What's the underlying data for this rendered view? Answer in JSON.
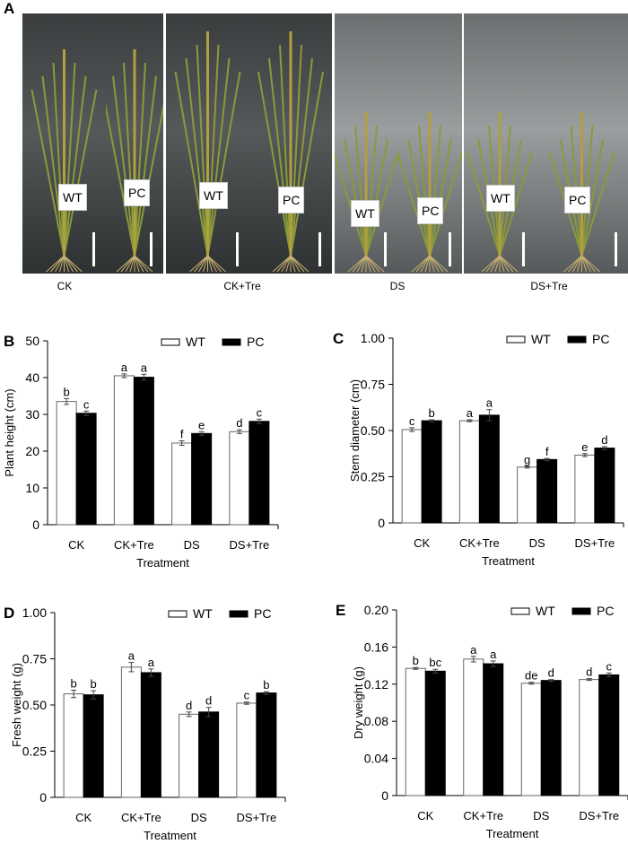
{
  "panel_a": {
    "letter": "A",
    "groups": [
      "CK",
      "CK+Tre",
      "DS",
      "DS+Tre"
    ],
    "photo_labels": [
      "WT",
      "PC",
      "WT",
      "PC",
      "WT",
      "PC",
      "WT",
      "PC"
    ]
  },
  "chart_data": [
    {
      "letter": "B",
      "type": "bar",
      "categories": [
        "CK",
        "CK+Tre",
        "DS",
        "DS+Tre"
      ],
      "xlabel": "Treatment",
      "ylabel": "Plant height (cm)",
      "ylim": [
        0,
        50
      ],
      "yticks": [
        "0",
        "10",
        "20",
        "30",
        "40",
        "50"
      ],
      "legend": "top-right",
      "series": [
        {
          "name": "WT",
          "color": "#ffffff",
          "values": [
            33.5,
            40.5,
            22.2,
            25.3
          ],
          "errors": [
            0.8,
            0.5,
            0.6,
            0.5
          ],
          "letters": [
            "b",
            "a",
            "f",
            "d"
          ]
        },
        {
          "name": "PC",
          "color": "#000000",
          "values": [
            30.3,
            40.1,
            24.8,
            28.1
          ],
          "errors": [
            0.6,
            0.8,
            0.5,
            0.6
          ],
          "letters": [
            "c",
            "a",
            "e",
            "c"
          ]
        }
      ]
    },
    {
      "letter": "C",
      "type": "bar",
      "categories": [
        "CK",
        "CK+Tre",
        "DS",
        "DS+Tre"
      ],
      "xlabel": "Treatment",
      "ylabel": "Stem diameter (cm)",
      "ylim": [
        0,
        1
      ],
      "yticks": [
        "0",
        "0.25",
        "0.50",
        "0.75",
        "1.00"
      ],
      "legend": "top-right",
      "series": [
        {
          "name": "WT",
          "color": "#ffffff",
          "values": [
            0.505,
            0.553,
            0.302,
            0.367
          ],
          "errors": [
            0.01,
            0.005,
            0.005,
            0.008
          ],
          "letters": [
            "c",
            "a",
            "g",
            "e"
          ]
        },
        {
          "name": "PC",
          "color": "#000000",
          "values": [
            0.553,
            0.583,
            0.343,
            0.405
          ],
          "errors": [
            0.005,
            0.03,
            0.006,
            0.008
          ],
          "letters": [
            "b",
            "a",
            "f",
            "d"
          ]
        }
      ]
    },
    {
      "letter": "D",
      "type": "bar",
      "categories": [
        "CK",
        "CK+Tre",
        "DS",
        "DS+Tre"
      ],
      "xlabel": "Treatment",
      "ylabel": "Fresh weight (g)",
      "ylim": [
        0,
        1
      ],
      "yticks": [
        "0",
        "0.25",
        "0.50",
        "0.75",
        "1.00"
      ],
      "legend": "top-right",
      "series": [
        {
          "name": "WT",
          "color": "#ffffff",
          "values": [
            0.56,
            0.705,
            0.45,
            0.51
          ],
          "errors": [
            0.02,
            0.025,
            0.012,
            0.006
          ],
          "letters": [
            "b",
            "a",
            "d",
            "c"
          ]
        },
        {
          "name": "PC",
          "color": "#000000",
          "values": [
            0.555,
            0.675,
            0.462,
            0.565
          ],
          "errors": [
            0.022,
            0.02,
            0.025,
            0.007
          ],
          "letters": [
            "b",
            "a",
            "d",
            "b"
          ]
        }
      ]
    },
    {
      "letter": "E",
      "type": "bar",
      "categories": [
        "CK",
        "CK+Tre",
        "DS",
        "DS+Tre"
      ],
      "xlabel": "Treatment",
      "ylabel": "Dry weight (g)",
      "ylim": [
        0,
        0.2
      ],
      "yticks": [
        "0",
        "0.04",
        "0.08",
        "0.12",
        "0.16",
        "0.20"
      ],
      "legend": "top-right",
      "series": [
        {
          "name": "WT",
          "color": "#ffffff",
          "values": [
            0.137,
            0.147,
            0.121,
            0.125
          ],
          "errors": [
            0.001,
            0.003,
            0.001,
            0.001
          ],
          "letters": [
            "b",
            "a",
            "de",
            "d"
          ]
        },
        {
          "name": "PC",
          "color": "#000000",
          "values": [
            0.134,
            0.142,
            0.124,
            0.13
          ],
          "errors": [
            0.002,
            0.003,
            0.001,
            0.002
          ],
          "letters": [
            "bc",
            "a",
            "d",
            "c"
          ]
        }
      ]
    }
  ]
}
